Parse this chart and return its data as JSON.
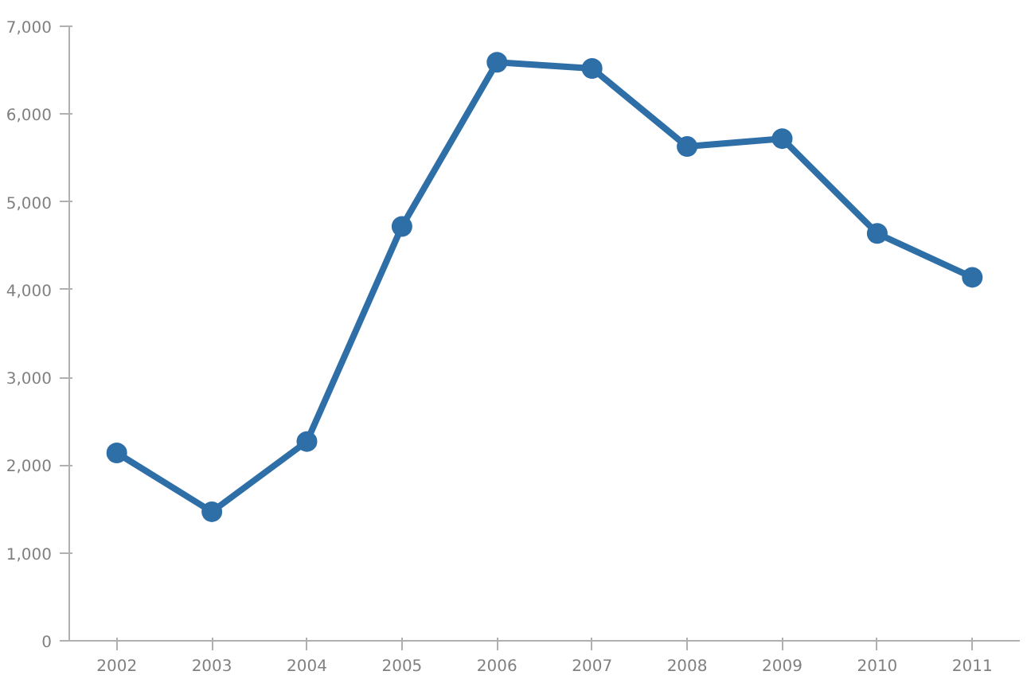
{
  "chart_data": {
    "type": "line",
    "categories": [
      "2002",
      "2003",
      "2004",
      "2005",
      "2006",
      "2007",
      "2008",
      "2009",
      "2010",
      "2011"
    ],
    "series": [
      {
        "color": "#2e6fa8",
        "values": [
          2140,
          1470,
          2270,
          4720,
          6590,
          6520,
          5630,
          5720,
          4640,
          4140
        ]
      }
    ],
    "ylim": [
      0,
      7000
    ],
    "yticks": [
      0,
      {
        "value": 1000,
        "label": "1,000"
      },
      {
        "value": 2000,
        "label": "2,000"
      },
      {
        "value": 3000,
        "label": "3,000"
      },
      {
        "value": 4000,
        "label": "4,000"
      },
      {
        "value": 5000,
        "label": "5,000"
      },
      {
        "value": 6000,
        "label": "6,000"
      },
      {
        "value": 7000,
        "label": "7,000"
      }
    ],
    "grid": false,
    "marker": "circle",
    "line_style": "solid"
  }
}
